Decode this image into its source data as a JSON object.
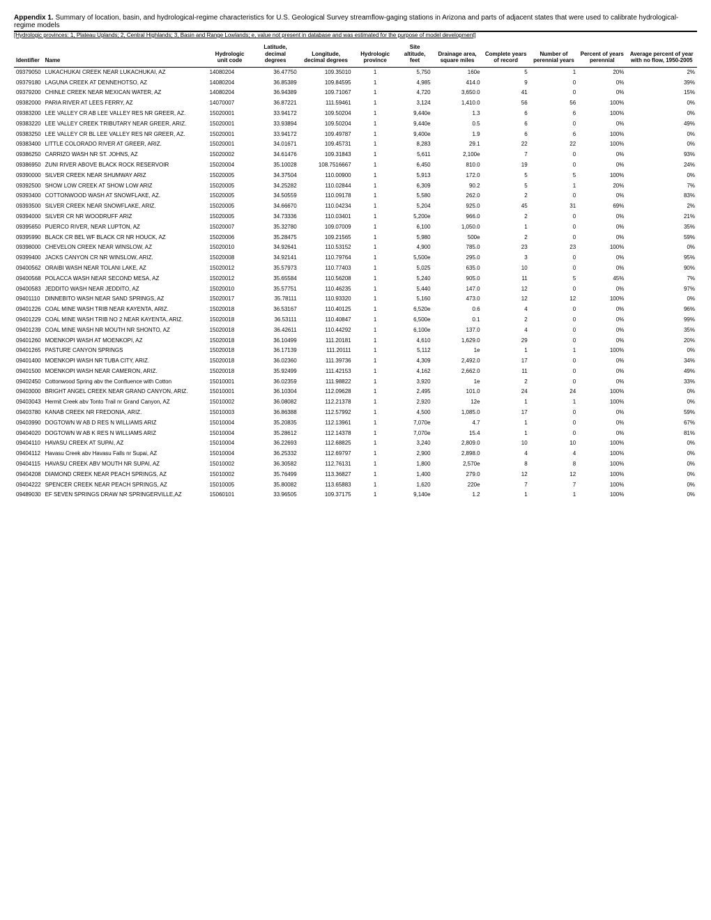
{
  "header": {
    "title_bold": "Appendix 1.",
    "title_rest": " Summary of location, basin, and hydrological-regime characteristics for U.S. Geological Survey streamflow-gaging stations in Arizona and parts of adjacent states that were used to calibrate hydrological-regime models",
    "subtitle": "[Hydrologic provinces: 1, Plateau Uplands; 2, Central Highlands; 3, Basin and Range Lowlands; e, value not present in database and was estimated for the purpose of model development]"
  },
  "columns": [
    "Identifier",
    "Name",
    "Hydrologic unit code",
    "Latitude, decimal degrees",
    "Longitude, decimal degrees",
    "Hydrologic province",
    "Site altitude, feet",
    "Drainage area, square miles",
    "Complete years of record",
    "Number of perennial years",
    "Percent of years perennial",
    "Average percent of year with no flow, 1950-2005"
  ],
  "rows": [
    [
      "09379050",
      "LUKACHUKAI CREEK NEAR LUKACHUKAI, AZ",
      "14080204",
      "36.47750",
      "109.35010",
      "1",
      "5,750",
      "160e",
      "5",
      "1",
      "20%",
      "2%"
    ],
    [
      "09379180",
      "LAGUNA CREEK AT DENNEHOTSO, AZ",
      "14080204",
      "36.85389",
      "109.84595",
      "1",
      "4,985",
      "414.0",
      "9",
      "0",
      "0%",
      "39%"
    ],
    [
      "09379200",
      "CHINLE CREEK NEAR MEXICAN WATER, AZ",
      "14080204",
      "36.94389",
      "109.71067",
      "1",
      "4,720",
      "3,650.0",
      "41",
      "0",
      "0%",
      "15%"
    ],
    [
      "09382000",
      "PARIA RIVER AT LEES FERRY, AZ",
      "14070007",
      "36.87221",
      "111.59461",
      "1",
      "3,124",
      "1,410.0",
      "56",
      "56",
      "100%",
      "0%"
    ],
    [
      "09383200",
      "LEE VALLEY CR AB LEE VALLEY RES NR GREER, AZ.",
      "15020001",
      "33.94172",
      "109.50204",
      "1",
      "9,440e",
      "1.3",
      "6",
      "6",
      "100%",
      "0%"
    ],
    [
      "09383220",
      "LEE VALLEY CREEK TRIBUTARY NEAR GREER, ARIZ.",
      "15020001",
      "33.93894",
      "109.50204",
      "1",
      "9,440e",
      "0.5",
      "6",
      "0",
      "0%",
      "49%"
    ],
    [
      "09383250",
      "LEE VALLEY CR BL LEE VALLEY RES NR GREER, AZ.",
      "15020001",
      "33.94172",
      "109.49787",
      "1",
      "9,400e",
      "1.9",
      "6",
      "6",
      "100%",
      "0%"
    ],
    [
      "09383400",
      "LITTLE COLORADO RIVER AT GREER, ARIZ.",
      "15020001",
      "34.01671",
      "109.45731",
      "1",
      "8,283",
      "29.1",
      "22",
      "22",
      "100%",
      "0%"
    ],
    [
      "09386250",
      "CARRIZO WASH NR ST. JOHNS, AZ",
      "15020002",
      "34.61476",
      "109.31843",
      "1",
      "5,611",
      "2,100e",
      "7",
      "0",
      "0%",
      "93%"
    ],
    [
      "09386950",
      "ZUNI RIVER ABOVE BLACK ROCK RESERVOIR",
      "15020004",
      "35.10028",
      "108.7516667",
      "1",
      "6,450",
      "810.0",
      "19",
      "0",
      "0%",
      "24%"
    ],
    [
      "09390000",
      "SILVER CREEK NEAR SHUMWAY ARIZ",
      "15020005",
      "34.37504",
      "110.00900",
      "1",
      "5,913",
      "172.0",
      "5",
      "5",
      "100%",
      "0%"
    ],
    [
      "09392500",
      "SHOW LOW CREEK AT SHOW LOW ARIZ",
      "15020005",
      "34.25282",
      "110.02844",
      "1",
      "6,309",
      "90.2",
      "5",
      "1",
      "20%",
      "7%"
    ],
    [
      "09393400",
      "COTTONWOOD WASH AT SNOWFLAKE, AZ.",
      "15020005",
      "34.50559",
      "110.09178",
      "1",
      "5,580",
      "262.0",
      "2",
      "0",
      "0%",
      "83%"
    ],
    [
      "09393500",
      "SILVER CREEK NEAR SNOWFLAKE, ARIZ.",
      "15020005",
      "34.66670",
      "110.04234",
      "1",
      "5,204",
      "925.0",
      "45",
      "31",
      "69%",
      "2%"
    ],
    [
      "09394000",
      "SILVER CR NR WOODRUFF ARIZ",
      "15020005",
      "34.73336",
      "110.03401",
      "1",
      "5,200e",
      "966.0",
      "2",
      "0",
      "0%",
      "21%"
    ],
    [
      "09395650",
      "PUERCO RIVER, NEAR LUPTON, AZ",
      "15020007",
      "35.32780",
      "109.07009",
      "1",
      "6,100",
      "1,050.0",
      "1",
      "0",
      "0%",
      "35%"
    ],
    [
      "09395990",
      "BLACK CR BEL WF BLACK CR NR HOUCK, AZ",
      "15020006",
      "35.28475",
      "109.21565",
      "1",
      "5,980",
      "500e",
      "2",
      "0",
      "0%",
      "59%"
    ],
    [
      "09398000",
      "CHEVELON CREEK NEAR WINSLOW, AZ",
      "15020010",
      "34.92641",
      "110.53152",
      "1",
      "4,900",
      "785.0",
      "23",
      "23",
      "100%",
      "0%"
    ],
    [
      "09399400",
      "JACKS CANYON CR NR WINSLOW, ARIZ.",
      "15020008",
      "34.92141",
      "110.79764",
      "1",
      "5,500e",
      "295.0",
      "3",
      "0",
      "0%",
      "95%"
    ],
    [
      "09400562",
      "ORAIBI WASH NEAR TOLANI LAKE, AZ",
      "15020012",
      "35.57973",
      "110.77403",
      "1",
      "5,025",
      "635.0",
      "10",
      "0",
      "0%",
      "90%"
    ],
    [
      "09400568",
      "POLACCA WASH NEAR SECOND MESA, AZ",
      "15020012",
      "35.65584",
      "110.56208",
      "1",
      "5,240",
      "905.0",
      "11",
      "5",
      "45%",
      "7%"
    ],
    [
      "09400583",
      "JEDDITO WASH NEAR JEDDITO, AZ",
      "15020010",
      "35.57751",
      "110.46235",
      "1",
      "5,440",
      "147.0",
      "12",
      "0",
      "0%",
      "97%"
    ],
    [
      "09401110",
      "DINNEBITO WASH NEAR SAND SPRINGS, AZ",
      "15020017",
      "35.78111",
      "110.93320",
      "1",
      "5,160",
      "473.0",
      "12",
      "12",
      "100%",
      "0%"
    ],
    [
      "09401226",
      "COAL MINE WASH TRIB NEAR KAYENTA, ARIZ.",
      "15020018",
      "36.53167",
      "110.40125",
      "1",
      "6,520e",
      "0.6",
      "4",
      "0",
      "0%",
      "96%"
    ],
    [
      "09401229",
      "COAL MINE WASH TRIB NO 2 NEAR KAYENTA, ARIZ.",
      "15020018",
      "36.53111",
      "110.40847",
      "1",
      "6,500e",
      "0.1",
      "2",
      "0",
      "0%",
      "99%"
    ],
    [
      "09401239",
      "COAL MINE WASH NR MOUTH NR SHONTO, AZ",
      "15020018",
      "36.42611",
      "110.44292",
      "1",
      "6,100e",
      "137.0",
      "4",
      "0",
      "0%",
      "35%"
    ],
    [
      "09401260",
      "MOENKOPI WASH AT MOENKOPI, AZ",
      "15020018",
      "36.10499",
      "111.20181",
      "1",
      "4,610",
      "1,629.0",
      "29",
      "0",
      "0%",
      "20%"
    ],
    [
      "09401265",
      "PASTURE CANYON SPRINGS",
      "15020018",
      "36.17139",
      "111.20111",
      "1",
      "5,112",
      "1e",
      "1",
      "1",
      "100%",
      "0%"
    ],
    [
      "09401400",
      "MOENKOPI WASH NR TUBA CITY, ARIZ.",
      "15020018",
      "36.02360",
      "111.39736",
      "1",
      "4,309",
      "2,492.0",
      "17",
      "0",
      "0%",
      "34%"
    ],
    [
      "09401500",
      "MOENKOPI WASH NEAR CAMERON, ARIZ.",
      "15020018",
      "35.92499",
      "111.42153",
      "1",
      "4,162",
      "2,662.0",
      "11",
      "0",
      "0%",
      "49%"
    ],
    [
      "09402450",
      "Cottonwood Spring abv the Confluence with Cotton",
      "15010001",
      "36.02359",
      "111.98822",
      "1",
      "3,920",
      "1e",
      "2",
      "0",
      "0%",
      "33%"
    ],
    [
      "09403000",
      "BRIGHT ANGEL CREEK NEAR GRAND CANYON, ARIZ.",
      "15010001",
      "36.10304",
      "112.09628",
      "1",
      "2,495",
      "101.0",
      "24",
      "24",
      "100%",
      "0%"
    ],
    [
      "09403043",
      "Hermit Creek abv Tonto Trail nr Grand Canyon, AZ",
      "15010002",
      "36.08082",
      "112.21378",
      "1",
      "2,920",
      "12e",
      "1",
      "1",
      "100%",
      "0%"
    ],
    [
      "09403780",
      "KANAB CREEK NR FREDONIA, ARIZ.",
      "15010003",
      "36.86388",
      "112.57992",
      "1",
      "4,500",
      "1,085.0",
      "17",
      "0",
      "0%",
      "59%"
    ],
    [
      "09403990",
      "DOGTOWN W AB D RES N WILLIAMS ARIZ",
      "15010004",
      "35.20835",
      "112.13961",
      "1",
      "7,070e",
      "4.7",
      "1",
      "0",
      "0%",
      "67%"
    ],
    [
      "09404020",
      "DOGTOWN W AB K RES N WILLIAMS ARIZ",
      "15010004",
      "35.28612",
      "112.14378",
      "1",
      "7,070e",
      "15.4",
      "1",
      "0",
      "0%",
      "81%"
    ],
    [
      "09404110",
      "HAVASU CREEK AT SUPAI, AZ",
      "15010004",
      "36.22693",
      "112.68825",
      "1",
      "3,240",
      "2,809.0",
      "10",
      "10",
      "100%",
      "0%"
    ],
    [
      "09404112",
      "Havasu Creek abv Havasu Falls nr Supai, AZ",
      "15010004",
      "36.25332",
      "112.69797",
      "1",
      "2,900",
      "2,898.0",
      "4",
      "4",
      "100%",
      "0%"
    ],
    [
      "09404115",
      "HAVASU CREEK ABV MOUTH NR SUPAI, AZ",
      "15010002",
      "36.30582",
      "112.76131",
      "1",
      "1,800",
      "2,570e",
      "8",
      "8",
      "100%",
      "0%"
    ],
    [
      "09404208",
      "DIAMOND CREEK NEAR PEACH SPRINGS, AZ",
      "15010002",
      "35.76499",
      "113.36827",
      "1",
      "1,400",
      "279.0",
      "12",
      "12",
      "100%",
      "0%"
    ],
    [
      "09404222",
      "SPENCER CREEK NEAR PEACH SPRINGS, AZ",
      "15010005",
      "35.80082",
      "113.65883",
      "1",
      "1,620",
      "220e",
      "7",
      "7",
      "100%",
      "0%"
    ],
    [
      "09489030",
      "EF SEVEN SPRINGS DRAW NR SPRINGERVILLE,AZ",
      "15060101",
      "33.96505",
      "109.37175",
      "1",
      "9,140e",
      "1.2",
      "1",
      "1",
      "100%",
      "0%"
    ]
  ]
}
